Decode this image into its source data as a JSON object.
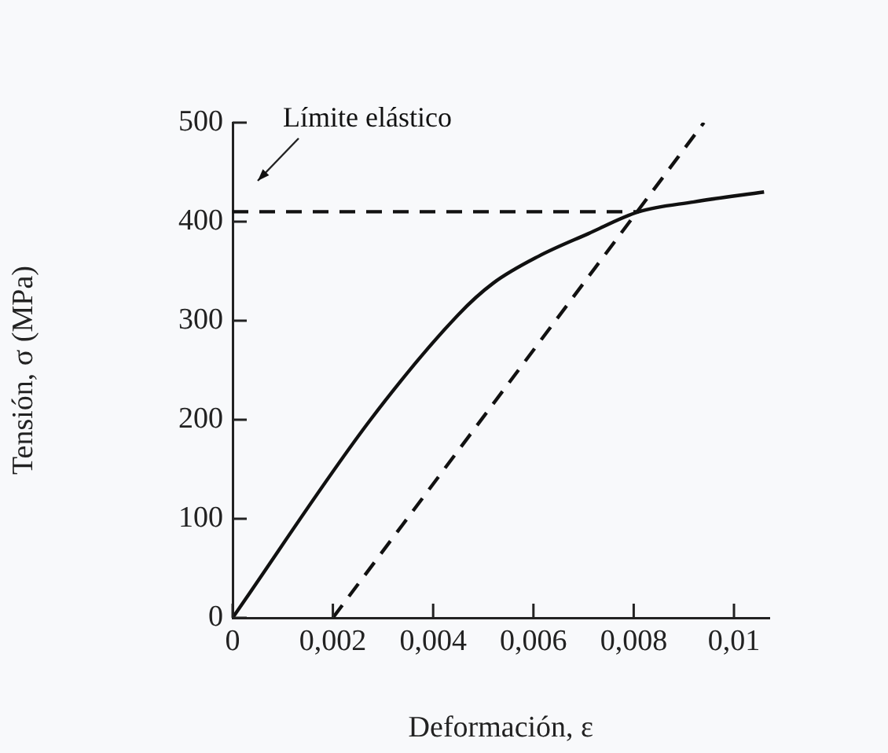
{
  "chart_data": {
    "type": "line",
    "xlabel": "Deformación, ε",
    "ylabel": "Tensión, σ (MPa)",
    "xlim": [
      0,
      0.0107
    ],
    "xticks": [
      0,
      {
        "value": 0.002,
        "label": "0,002"
      },
      {
        "value": 0.004,
        "label": "0,004"
      },
      {
        "value": 0.006,
        "label": "0,006"
      },
      {
        "value": 0.008,
        "label": "0,008"
      },
      {
        "value": 0.01,
        "label": "0,01"
      }
    ],
    "ylim": [
      0,
      500
    ],
    "yticks": [
      0,
      100,
      200,
      300,
      400,
      500
    ],
    "grid": false,
    "legend": false,
    "marker": "none",
    "series": [
      {
        "color": "#111111",
        "line_style": "solid",
        "x": [
          0,
          0.00275,
          0.0045,
          0.0052,
          0.0061,
          0.0071,
          0.0081,
          0.0092,
          0.0106
        ],
        "values": [
          0,
          200,
          306,
          338,
          365,
          388,
          410,
          420,
          430
        ]
      },
      {
        "color": "#111111",
        "line_style": "dashed",
        "x": [
          0.002,
          0.0094
        ],
        "values": [
          0,
          500
        ]
      },
      {
        "color": "#111111",
        "line_style": "dashed",
        "x": [
          0,
          0.0081
        ],
        "values": [
          410,
          410
        ]
      }
    ],
    "annotations": [
      "Límite elástico"
    ]
  }
}
